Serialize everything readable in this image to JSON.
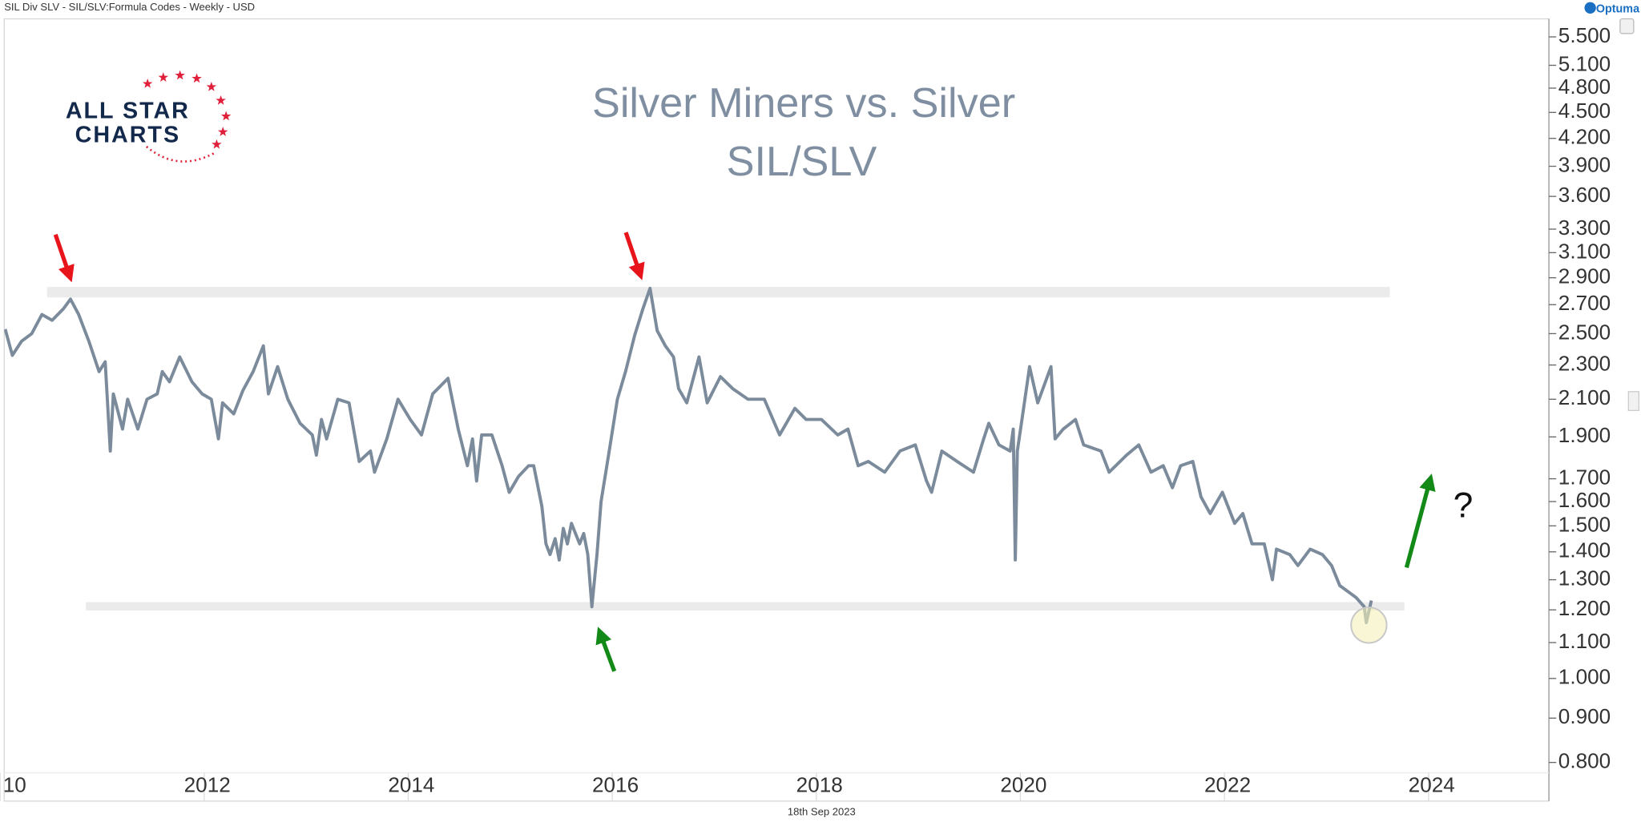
{
  "header_text": "SIL Div SLV - SIL/SLV:Formula Codes - Weekly - USD",
  "brand": "Optuma",
  "logo_lines": [
    "ALL STAR",
    "CHARTS"
  ],
  "date_stamp": "18th Sep 2023",
  "chart_data": {
    "type": "line",
    "title": "Silver Miners vs. Silver",
    "subtitle": "SIL/SLV",
    "annotations": [
      "?"
    ],
    "color": "#7b8b9b",
    "log_scale_y": true,
    "y_axis_side": "right",
    "grid": false,
    "xlim": [
      2010.04,
      2025.18
    ],
    "xticks": [
      {
        "value": 2010,
        "label": "10"
      },
      2012,
      2014,
      2016,
      2018,
      2020,
      2022,
      2024
    ],
    "ylim": [
      0.722,
      5.77
    ],
    "yticks": [
      {
        "value": 5.5,
        "label": "5.500"
      },
      {
        "value": 5.1,
        "label": "5.100"
      },
      {
        "value": 4.8,
        "label": "4.800"
      },
      {
        "value": 4.5,
        "label": "4.500"
      },
      {
        "value": 4.2,
        "label": "4.200"
      },
      {
        "value": 3.9,
        "label": "3.900"
      },
      {
        "value": 3.6,
        "label": "3.600"
      },
      {
        "value": 3.3,
        "label": "3.300"
      },
      {
        "value": 3.1,
        "label": "3.100"
      },
      {
        "value": 2.9,
        "label": "2.900"
      },
      {
        "value": 2.7,
        "label": "2.700"
      },
      {
        "value": 2.5,
        "label": "2.500"
      },
      {
        "value": 2.3,
        "label": "2.300"
      },
      {
        "value": 2.1,
        "label": "2.100"
      },
      {
        "value": 1.9,
        "label": "1.900"
      },
      {
        "value": 1.7,
        "label": "1.700"
      },
      {
        "value": 1.6,
        "label": "1.600"
      },
      {
        "value": 1.5,
        "label": "1.500"
      },
      {
        "value": 1.4,
        "label": "1.400"
      },
      {
        "value": 1.3,
        "label": "1.300"
      },
      {
        "value": 1.2,
        "label": "1.200"
      },
      {
        "value": 1.1,
        "label": "1.100"
      },
      {
        "value": 1.0,
        "label": "1.000"
      },
      {
        "value": 0.9,
        "label": "0.900"
      },
      {
        "value": 0.8,
        "label": "0.800"
      }
    ],
    "x": [
      2010.05,
      2010.12,
      2010.21,
      2010.31,
      2010.41,
      2010.51,
      2010.62,
      2010.69,
      2010.77,
      2010.87,
      2010.97,
      2011.03,
      2011.08,
      2011.11,
      2011.2,
      2011.25,
      2011.35,
      2011.44,
      2011.54,
      2011.59,
      2011.66,
      2011.76,
      2011.88,
      2011.98,
      2012.07,
      2012.14,
      2012.18,
      2012.29,
      2012.38,
      2012.48,
      2012.58,
      2012.63,
      2012.72,
      2012.82,
      2012.94,
      2013.06,
      2013.1,
      2013.15,
      2013.2,
      2013.31,
      2013.42,
      2013.52,
      2013.63,
      2013.67,
      2013.79,
      2013.9,
      2014.02,
      2014.13,
      2014.24,
      2014.39,
      2014.49,
      2014.58,
      2014.63,
      2014.67,
      2014.72,
      2014.82,
      2014.92,
      2014.99,
      2015.08,
      2015.18,
      2015.23,
      2015.31,
      2015.35,
      2015.39,
      2015.44,
      2015.48,
      2015.52,
      2015.56,
      2015.6,
      2015.68,
      2015.72,
      2015.76,
      2015.8,
      2015.85,
      2015.89,
      2015.97,
      2016.05,
      2016.13,
      2016.22,
      2016.3,
      2016.37,
      2016.44,
      2016.52,
      2016.6,
      2016.65,
      2016.73,
      2016.85,
      2016.93,
      2017.06,
      2017.18,
      2017.33,
      2017.49,
      2017.64,
      2017.79,
      2017.9,
      2018.05,
      2018.21,
      2018.31,
      2018.41,
      2018.51,
      2018.67,
      2018.82,
      2018.97,
      2019.08,
      2019.13,
      2019.23,
      2019.38,
      2019.54,
      2019.64,
      2019.69,
      2019.79,
      2019.9,
      2019.93,
      2019.95,
      2019.97,
      2020.01,
      2020.09,
      2020.17,
      2020.3,
      2020.34,
      2020.42,
      2020.54,
      2020.62,
      2020.79,
      2020.87,
      2021.04,
      2021.16,
      2021.28,
      2021.4,
      2021.49,
      2021.57,
      2021.69,
      2021.77,
      2021.86,
      2021.98,
      2022.1,
      2022.18,
      2022.27,
      2022.39,
      2022.47,
      2022.51,
      2022.64,
      2022.72,
      2022.84,
      2022.96,
      2023.05,
      2023.13,
      2023.21,
      2023.29,
      2023.37,
      2023.39,
      2023.44
    ],
    "values": [
      2.53,
      2.36,
      2.45,
      2.5,
      2.63,
      2.59,
      2.67,
      2.74,
      2.63,
      2.45,
      2.26,
      2.32,
      1.83,
      2.13,
      1.94,
      2.1,
      1.94,
      2.1,
      2.13,
      2.26,
      2.2,
      2.35,
      2.2,
      2.13,
      2.1,
      1.89,
      2.08,
      2.02,
      2.15,
      2.26,
      2.42,
      2.13,
      2.29,
      2.1,
      1.97,
      1.91,
      1.81,
      1.99,
      1.89,
      2.1,
      2.08,
      1.78,
      1.83,
      1.73,
      1.89,
      2.1,
      1.99,
      1.91,
      2.13,
      2.22,
      1.94,
      1.76,
      1.89,
      1.69,
      1.91,
      1.91,
      1.76,
      1.64,
      1.71,
      1.76,
      1.76,
      1.58,
      1.43,
      1.39,
      1.45,
      1.37,
      1.49,
      1.43,
      1.51,
      1.43,
      1.47,
      1.39,
      1.21,
      1.39,
      1.6,
      1.83,
      2.1,
      2.26,
      2.49,
      2.67,
      2.82,
      2.52,
      2.42,
      2.35,
      2.16,
      2.08,
      2.35,
      2.08,
      2.23,
      2.16,
      2.1,
      2.1,
      1.91,
      2.05,
      1.99,
      1.99,
      1.91,
      1.94,
      1.76,
      1.78,
      1.73,
      1.83,
      1.86,
      1.69,
      1.64,
      1.83,
      1.78,
      1.73,
      1.89,
      1.97,
      1.86,
      1.83,
      1.94,
      1.37,
      1.83,
      1.97,
      2.29,
      2.08,
      2.29,
      1.89,
      1.94,
      1.99,
      1.86,
      1.83,
      1.73,
      1.81,
      1.86,
      1.73,
      1.76,
      1.66,
      1.76,
      1.78,
      1.62,
      1.55,
      1.64,
      1.51,
      1.55,
      1.43,
      1.43,
      1.3,
      1.41,
      1.39,
      1.35,
      1.41,
      1.39,
      1.35,
      1.28,
      1.26,
      1.24,
      1.21,
      1.16,
      1.23
    ]
  }
}
